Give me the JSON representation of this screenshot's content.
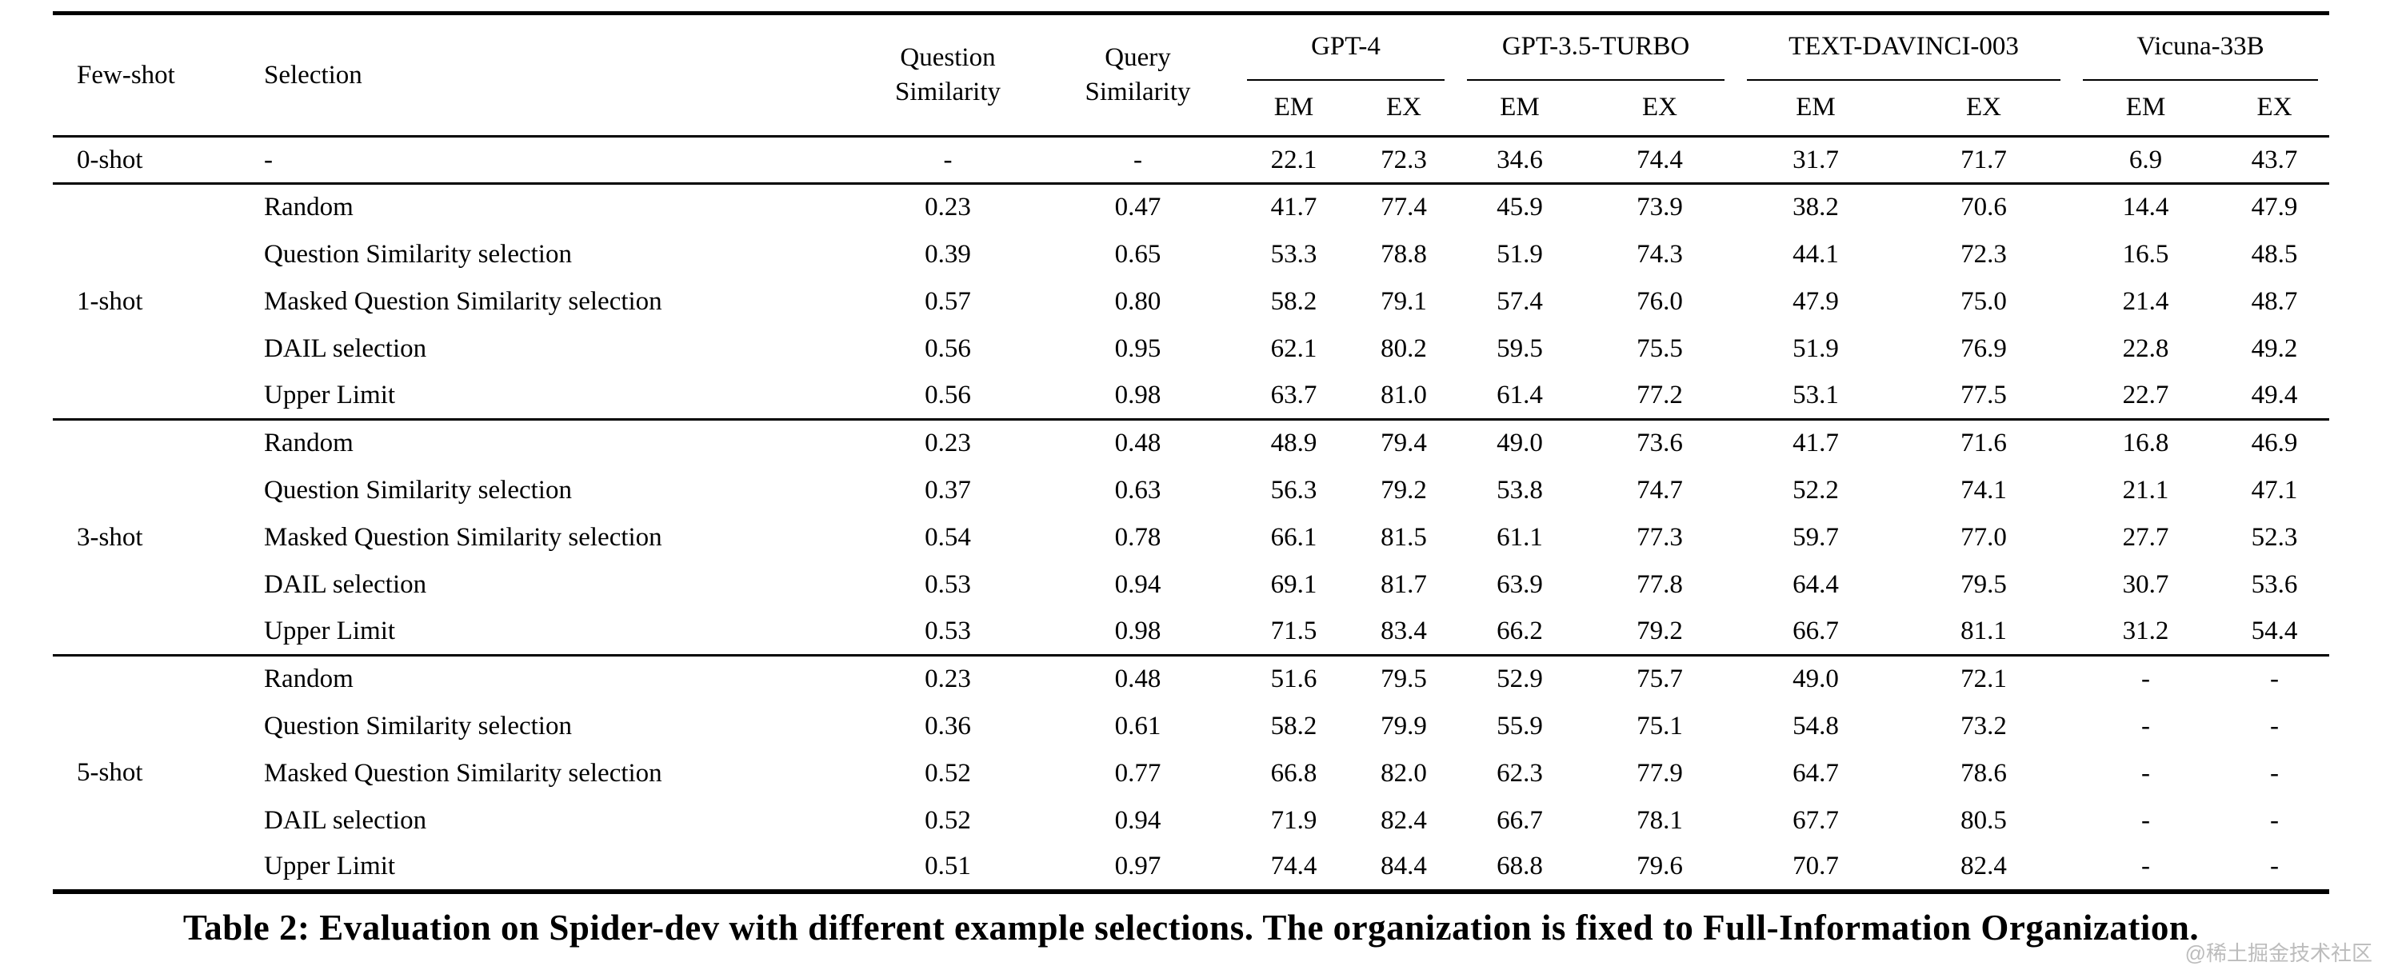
{
  "table": {
    "header": {
      "few_shot": "Few-shot",
      "selection": "Selection",
      "question_similarity_line1": "Question",
      "question_similarity_line2": "Similarity",
      "query_similarity_line1": "Query",
      "query_similarity_line2": "Similarity",
      "models": [
        {
          "name": "GPT-4",
          "metrics": [
            "EM",
            "EX"
          ]
        },
        {
          "name": "GPT-3.5-TURBO",
          "metrics": [
            "EM",
            "EX"
          ]
        },
        {
          "name": "TEXT-DAVINCI-003",
          "metrics": [
            "EM",
            "EX"
          ]
        },
        {
          "name": "Vicuna-33B",
          "metrics": [
            "EM",
            "EX"
          ]
        }
      ]
    },
    "groups": [
      {
        "few_shot": "0-shot",
        "rows": [
          {
            "selection": "-",
            "question_similarity": "-",
            "query_similarity": "-",
            "values": [
              "22.1",
              "72.3",
              "34.6",
              "74.4",
              "31.7",
              "71.7",
              "6.9",
              "43.7"
            ]
          }
        ]
      },
      {
        "few_shot": "1-shot",
        "rows": [
          {
            "selection": "Random",
            "question_similarity": "0.23",
            "query_similarity": "0.47",
            "values": [
              "41.7",
              "77.4",
              "45.9",
              "73.9",
              "38.2",
              "70.6",
              "14.4",
              "47.9"
            ]
          },
          {
            "selection": "Question Similarity selection",
            "question_similarity": "0.39",
            "query_similarity": "0.65",
            "values": [
              "53.3",
              "78.8",
              "51.9",
              "74.3",
              "44.1",
              "72.3",
              "16.5",
              "48.5"
            ]
          },
          {
            "selection": "Masked Question Similarity selection",
            "question_similarity": "0.57",
            "query_similarity": "0.80",
            "values": [
              "58.2",
              "79.1",
              "57.4",
              "76.0",
              "47.9",
              "75.0",
              "21.4",
              "48.7"
            ]
          },
          {
            "selection": "DAIL selection",
            "question_similarity": "0.56",
            "query_similarity": "0.95",
            "values": [
              "62.1",
              "80.2",
              "59.5",
              "75.5",
              "51.9",
              "76.9",
              "22.8",
              "49.2"
            ]
          },
          {
            "selection": "Upper Limit",
            "question_similarity": "0.56",
            "query_similarity": "0.98",
            "values": [
              "63.7",
              "81.0",
              "61.4",
              "77.2",
              "53.1",
              "77.5",
              "22.7",
              "49.4"
            ]
          }
        ]
      },
      {
        "few_shot": "3-shot",
        "rows": [
          {
            "selection": "Random",
            "question_similarity": "0.23",
            "query_similarity": "0.48",
            "values": [
              "48.9",
              "79.4",
              "49.0",
              "73.6",
              "41.7",
              "71.6",
              "16.8",
              "46.9"
            ]
          },
          {
            "selection": "Question Similarity selection",
            "question_similarity": "0.37",
            "query_similarity": "0.63",
            "values": [
              "56.3",
              "79.2",
              "53.8",
              "74.7",
              "52.2",
              "74.1",
              "21.1",
              "47.1"
            ]
          },
          {
            "selection": "Masked Question Similarity selection",
            "question_similarity": "0.54",
            "query_similarity": "0.78",
            "values": [
              "66.1",
              "81.5",
              "61.1",
              "77.3",
              "59.7",
              "77.0",
              "27.7",
              "52.3"
            ]
          },
          {
            "selection": "DAIL selection",
            "question_similarity": "0.53",
            "query_similarity": "0.94",
            "values": [
              "69.1",
              "81.7",
              "63.9",
              "77.8",
              "64.4",
              "79.5",
              "30.7",
              "53.6"
            ]
          },
          {
            "selection": "Upper Limit",
            "question_similarity": "0.53",
            "query_similarity": "0.98",
            "values": [
              "71.5",
              "83.4",
              "66.2",
              "79.2",
              "66.7",
              "81.1",
              "31.2",
              "54.4"
            ]
          }
        ]
      },
      {
        "few_shot": "5-shot",
        "rows": [
          {
            "selection": "Random",
            "question_similarity": "0.23",
            "query_similarity": "0.48",
            "values": [
              "51.6",
              "79.5",
              "52.9",
              "75.7",
              "49.0",
              "72.1",
              "-",
              "-"
            ]
          },
          {
            "selection": "Question Similarity selection",
            "question_similarity": "0.36",
            "query_similarity": "0.61",
            "values": [
              "58.2",
              "79.9",
              "55.9",
              "75.1",
              "54.8",
              "73.2",
              "-",
              "-"
            ]
          },
          {
            "selection": "Masked Question Similarity selection",
            "question_similarity": "0.52",
            "query_similarity": "0.77",
            "values": [
              "66.8",
              "82.0",
              "62.3",
              "77.9",
              "64.7",
              "78.6",
              "-",
              "-"
            ]
          },
          {
            "selection": "DAIL selection",
            "question_similarity": "0.52",
            "query_similarity": "0.94",
            "values": [
              "71.9",
              "82.4",
              "66.7",
              "78.1",
              "67.7",
              "80.5",
              "-",
              "-"
            ]
          },
          {
            "selection": "Upper Limit",
            "question_similarity": "0.51",
            "query_similarity": "0.97",
            "values": [
              "74.4",
              "84.4",
              "68.8",
              "79.6",
              "70.7",
              "82.4",
              "-",
              "-"
            ]
          }
        ]
      }
    ]
  },
  "caption": "Table 2: Evaluation on Spider-dev with different example selections. The organization is fixed to Full-Information Organization.",
  "watermark": "@稀土掘金技术社区"
}
